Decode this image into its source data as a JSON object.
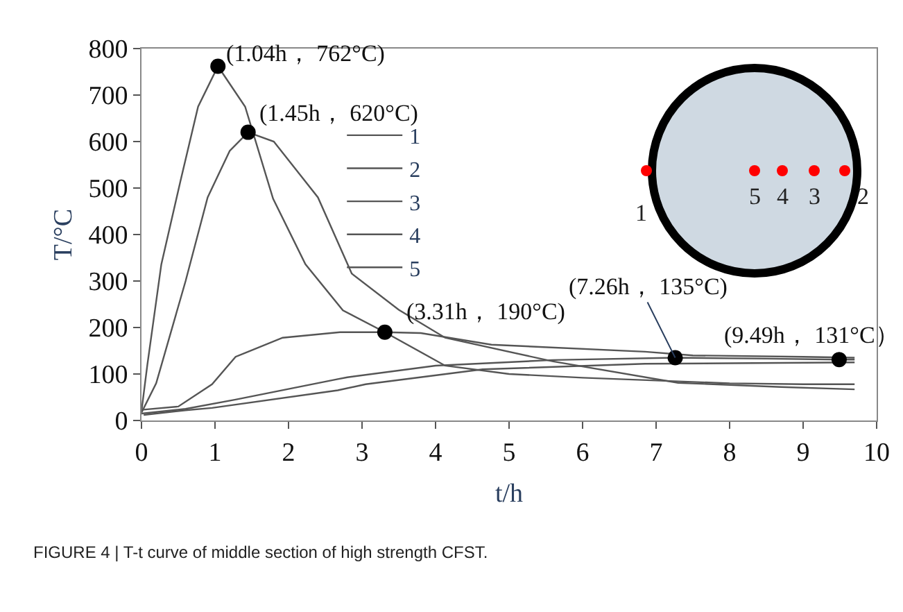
{
  "chart_data": {
    "type": "line",
    "xlabel": "t/h",
    "ylabel": "T/°C",
    "xlim": [
      0,
      10
    ],
    "ylim": [
      0,
      800
    ],
    "xticks": [
      0,
      1,
      2,
      3,
      4,
      5,
      6,
      7,
      8,
      9,
      10
    ],
    "yticks": [
      0,
      100,
      200,
      300,
      400,
      500,
      600,
      700,
      800
    ],
    "legend": "top",
    "marker": "none",
    "line_style": "solid",
    "series": [
      {
        "name": "1",
        "color": "#555555",
        "x": [
          0,
          0.08,
          0.27,
          0.53,
          0.77,
          1.04,
          1.41,
          1.79,
          2.23,
          2.74,
          3.31,
          4.13,
          5,
          6,
          7,
          8,
          9,
          9.7
        ],
        "values": [
          20,
          120,
          336,
          515,
          675,
          762,
          675,
          477,
          336,
          237,
          190,
          118,
          100,
          92,
          86,
          80,
          78,
          78
        ]
      },
      {
        "name": "2",
        "color": "#555555",
        "x": [
          0,
          0.2,
          0.6,
          0.9,
          1.2,
          1.45,
          1.8,
          2.4,
          2.86,
          3.5,
          4.13,
          5.6,
          7.3,
          8.7,
          9.7
        ],
        "values": [
          17,
          80,
          300,
          480,
          580,
          620,
          600,
          480,
          316,
          238,
          178,
          127,
          81,
          72,
          67
        ]
      },
      {
        "name": "3",
        "color": "#555555",
        "x": [
          0,
          0.5,
          0.96,
          1.28,
          1.92,
          2.7,
          3.31,
          3.8,
          4.76,
          6.85,
          7.5,
          9,
          9.7
        ],
        "values": [
          23,
          30,
          78,
          137,
          178,
          190,
          190,
          188,
          163,
          148,
          140,
          137,
          135
        ]
      },
      {
        "name": "4",
        "color": "#555555",
        "x": [
          0,
          0.6,
          1.28,
          2.67,
          2.8,
          4,
          5.59,
          7.26,
          8.5,
          9.49,
          9.7
        ],
        "values": [
          15,
          25,
          45,
          89,
          93,
          118,
          130,
          135,
          133,
          131,
          131
        ]
      },
      {
        "name": "5",
        "color": "#555555",
        "x": [
          0.03,
          0.6,
          0.96,
          2.67,
          3.05,
          4.64,
          6.85,
          9.7
        ],
        "values": [
          12,
          22,
          27,
          65,
          78,
          110,
          122,
          125
        ]
      },
      {
        "type": "scatter",
        "color": "#000000",
        "marker": "circle",
        "x": [
          1.04,
          1.45,
          3.31,
          7.26,
          9.49
        ],
        "values": [
          762,
          620,
          190,
          135,
          131
        ]
      }
    ],
    "annotations": [
      {
        "text": "(1.04h， 762°C)",
        "x": 1.04,
        "y": 762
      },
      {
        "text": "(1.45h， 620°C)",
        "x": 1.45,
        "y": 620
      },
      {
        "text": "(3.31h， 190°C)",
        "x": 3.31,
        "y": 190
      },
      {
        "text": "(7.26h， 135°C)",
        "x": 7.26,
        "y": 135
      },
      {
        "text": "(9.49h， 131°C）",
        "x": 9.49,
        "y": 131
      },
      "1",
      "5",
      "4",
      "3",
      "2",
      "FIGURE 4 | T-t curve of middle section of high strength CFST."
    ]
  }
}
